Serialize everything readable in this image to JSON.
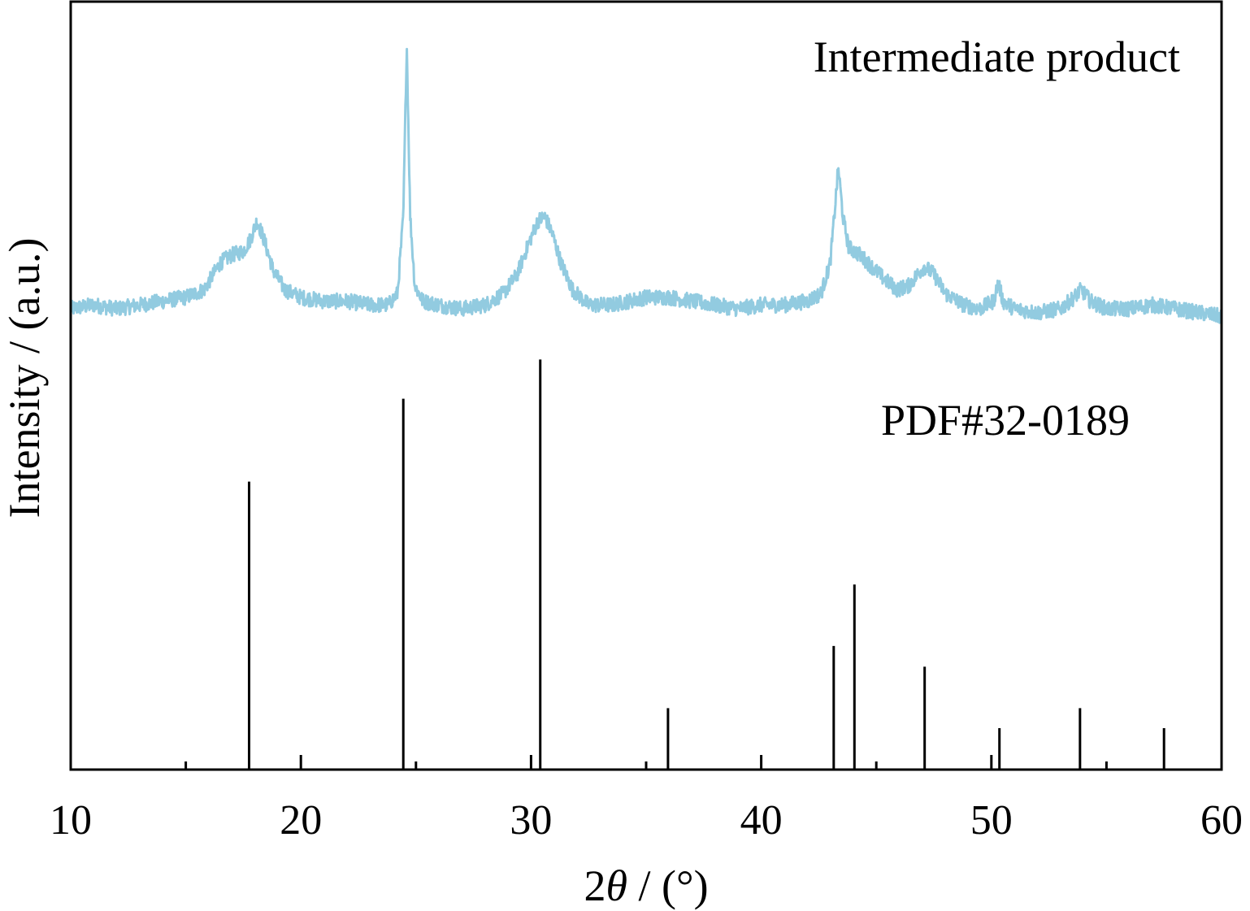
{
  "chart_data": {
    "type": "line",
    "title": "",
    "xlabel_parts": [
      "2",
      "θ",
      " / (°)"
    ],
    "ylabel": "Intensity / (a.u.)",
    "xlim": [
      10,
      60
    ],
    "ylim": [
      0,
      1
    ],
    "x_ticks": [
      "10",
      "20",
      "30",
      "40",
      "50",
      "60"
    ],
    "grid": false,
    "colors": {
      "measured": "#92cbe0",
      "reference": "#000000",
      "axis": "#000000"
    },
    "annotations": [
      {
        "text": "Intermediate product"
      },
      {
        "text": "PDF#32-0189"
      }
    ],
    "series": [
      {
        "name": "Intermediate product",
        "style": "line",
        "points": [
          [
            10,
            0.6
          ],
          [
            11,
            0.605
          ],
          [
            12,
            0.6
          ],
          [
            13,
            0.605
          ],
          [
            14,
            0.61
          ],
          [
            15,
            0.615
          ],
          [
            15.8,
            0.625
          ],
          [
            16.5,
            0.66
          ],
          [
            17,
            0.67
          ],
          [
            17.5,
            0.675
          ],
          [
            17.8,
            0.69
          ],
          [
            18.1,
            0.715
          ],
          [
            18.4,
            0.69
          ],
          [
            18.8,
            0.65
          ],
          [
            19.3,
            0.625
          ],
          [
            20,
            0.615
          ],
          [
            21,
            0.61
          ],
          [
            22,
            0.61
          ],
          [
            23,
            0.605
          ],
          [
            23.8,
            0.605
          ],
          [
            24.2,
            0.62
          ],
          [
            24.45,
            0.72
          ],
          [
            24.6,
            0.945
          ],
          [
            24.75,
            0.72
          ],
          [
            24.95,
            0.63
          ],
          [
            25.3,
            0.61
          ],
          [
            26,
            0.605
          ],
          [
            27,
            0.6
          ],
          [
            28,
            0.605
          ],
          [
            28.8,
            0.62
          ],
          [
            29.4,
            0.645
          ],
          [
            29.9,
            0.685
          ],
          [
            30.3,
            0.715
          ],
          [
            30.6,
            0.72
          ],
          [
            30.9,
            0.7
          ],
          [
            31.3,
            0.66
          ],
          [
            31.8,
            0.625
          ],
          [
            32.5,
            0.605
          ],
          [
            33.5,
            0.605
          ],
          [
            35,
            0.615
          ],
          [
            36,
            0.615
          ],
          [
            37,
            0.61
          ],
          [
            38,
            0.605
          ],
          [
            39,
            0.6
          ],
          [
            40,
            0.605
          ],
          [
            41,
            0.605
          ],
          [
            42,
            0.61
          ],
          [
            42.6,
            0.62
          ],
          [
            43,
            0.66
          ],
          [
            43.2,
            0.73
          ],
          [
            43.35,
            0.785
          ],
          [
            43.55,
            0.72
          ],
          [
            43.8,
            0.68
          ],
          [
            44.3,
            0.67
          ],
          [
            44.8,
            0.655
          ],
          [
            45.3,
            0.64
          ],
          [
            45.9,
            0.625
          ],
          [
            46.4,
            0.63
          ],
          [
            46.8,
            0.645
          ],
          [
            47.1,
            0.655
          ],
          [
            47.5,
            0.645
          ],
          [
            48,
            0.62
          ],
          [
            48.8,
            0.605
          ],
          [
            49.5,
            0.6
          ],
          [
            50.1,
            0.61
          ],
          [
            50.3,
            0.635
          ],
          [
            50.5,
            0.61
          ],
          [
            51,
            0.6
          ],
          [
            52,
            0.595
          ],
          [
            53,
            0.6
          ],
          [
            53.6,
            0.615
          ],
          [
            53.9,
            0.625
          ],
          [
            54.3,
            0.61
          ],
          [
            55,
            0.6
          ],
          [
            56,
            0.6
          ],
          [
            57,
            0.605
          ],
          [
            58,
            0.6
          ],
          [
            59,
            0.595
          ],
          [
            60,
            0.59
          ]
        ]
      },
      {
        "name": "PDF#32-0189",
        "style": "stick",
        "x": [
          17.75,
          24.45,
          30.4,
          35.95,
          43.15,
          44.05,
          47.1,
          50.35,
          53.85,
          57.5
        ],
        "values": [
          0.375,
          0.483,
          0.534,
          0.08,
          0.161,
          0.241,
          0.134,
          0.054,
          0.08,
          0.054
        ]
      }
    ]
  }
}
